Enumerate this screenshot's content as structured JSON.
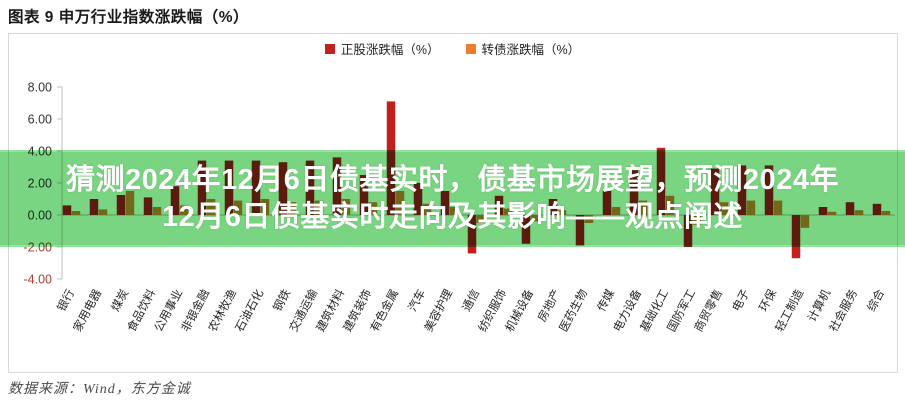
{
  "figure": {
    "title": "图表 9  申万行业指数涨跌幅（%）",
    "source": "数据来源：Wind，东方金诚"
  },
  "overlay": {
    "line1": "猜测2024年12月6日债基实时，债基市场展望，预测2024年",
    "line2": "12月6日债基实时走向及其影响——观点阐述",
    "background_color": "#79d581",
    "text_color": "#ffffff"
  },
  "chart_data": {
    "type": "bar",
    "title": "申万行业指数涨跌幅（%）",
    "xlabel": "",
    "ylabel": "",
    "ylim": [
      -4,
      8
    ],
    "yticks": [
      8,
      6,
      4,
      2,
      0,
      -2,
      -4
    ],
    "grid": false,
    "legend_position": "top",
    "tick_color_positive": "#333333",
    "negative_tick_color": "#b23b36",
    "categories": [
      "银行",
      "家用电器",
      "煤炭",
      "食品饮料",
      "公用事业",
      "非银金融",
      "农林牧渔",
      "石油石化",
      "钢铁",
      "交通运输",
      "建筑材料",
      "建筑装饰",
      "有色金属",
      "汽车",
      "美容护理",
      "通信",
      "纺织服饰",
      "机械设备",
      "房地产",
      "医药生物",
      "传媒",
      "电力设备",
      "基础化工",
      "国防军工",
      "商贸零售",
      "电子",
      "环保",
      "轻工制造",
      "计算机",
      "社会服务",
      "综合"
    ],
    "series": [
      {
        "name": "正股涨跌幅（%）",
        "color": "#c1201d",
        "values": [
          0.6,
          1.0,
          1.25,
          1.1,
          1.8,
          3.4,
          3.4,
          3.4,
          3.3,
          3.4,
          3.6,
          2.5,
          7.1,
          2.0,
          1.5,
          -2.4,
          1.2,
          -1.8,
          1.0,
          -1.9,
          1.5,
          2.8,
          4.2,
          -2.0,
          2.9,
          3.1,
          3.1,
          -2.7,
          0.5,
          0.8,
          0.7
        ]
      },
      {
        "name": "转债涨跌幅（%）",
        "color": "#ed7d31",
        "values": [
          0.25,
          0.35,
          1.5,
          0.5,
          0.6,
          1.0,
          0.9,
          1.0,
          0.8,
          0.9,
          1.0,
          0.8,
          1.5,
          0.7,
          0.5,
          -0.5,
          0.4,
          -0.4,
          0.3,
          -0.5,
          0.5,
          0.9,
          1.2,
          -0.6,
          0.8,
          0.9,
          0.9,
          -0.8,
          0.2,
          0.3,
          0.25
        ]
      }
    ]
  }
}
